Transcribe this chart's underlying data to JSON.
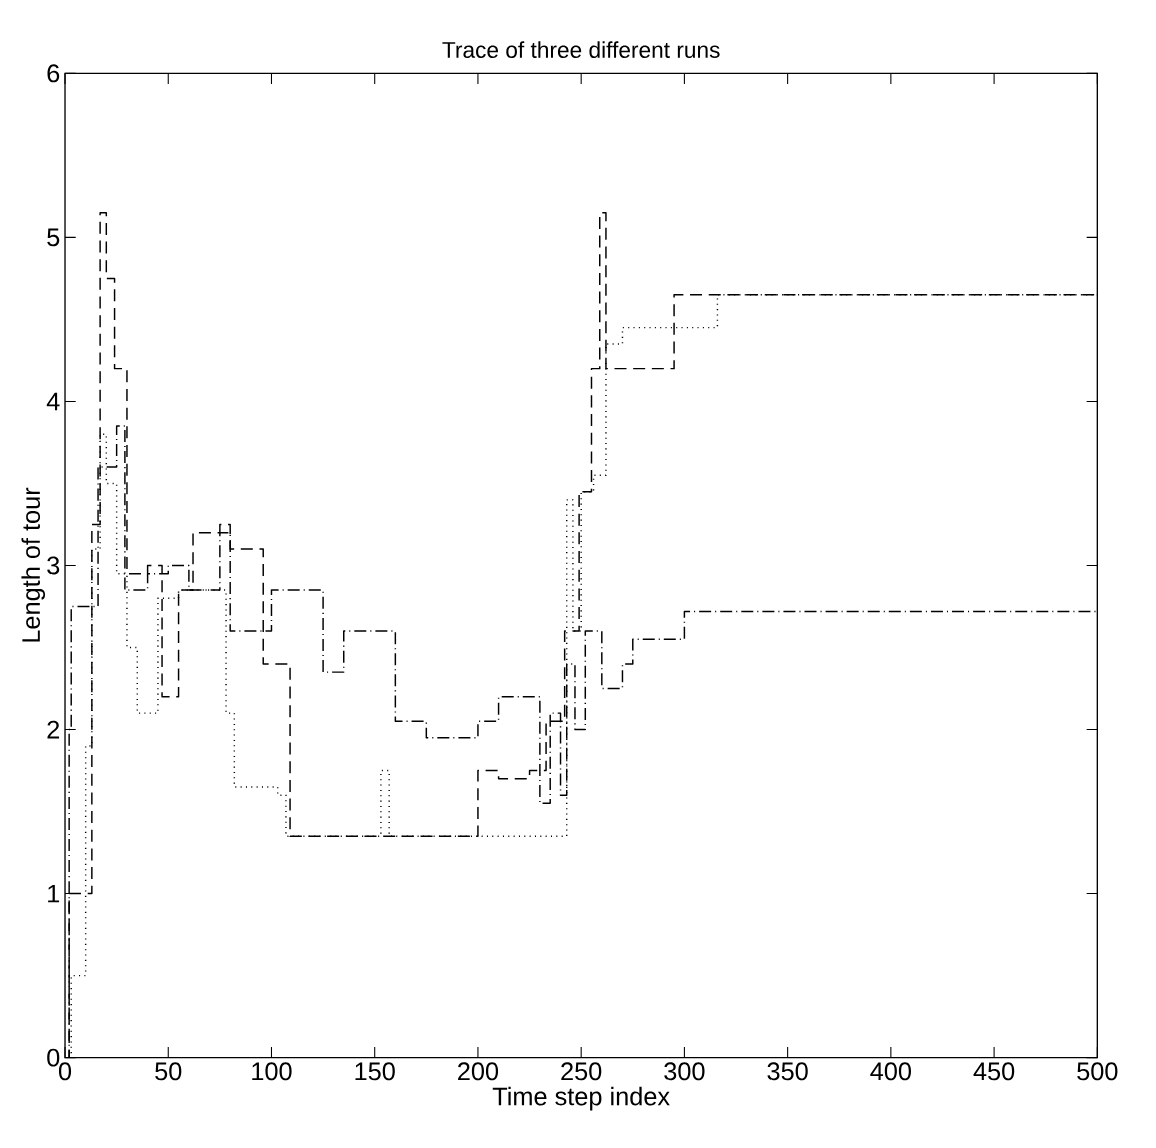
{
  "chart_data": {
    "type": "step",
    "title": "Trace of three different runs",
    "xlabel": "Time step index",
    "ylabel": "Length of tour",
    "xlim": [
      0,
      500
    ],
    "ylim": [
      0,
      6
    ],
    "xticks": [
      0,
      50,
      100,
      150,
      200,
      250,
      300,
      350,
      400,
      450,
      500
    ],
    "yticks": [
      0,
      1,
      2,
      3,
      4,
      5,
      6
    ],
    "grid": false,
    "series": [
      {
        "color": "#000000",
        "line_style": "dashed",
        "x": [
          0,
          2,
          13,
          17,
          20,
          24,
          30,
          40,
          47,
          55,
          62,
          75,
          80,
          96,
          109,
          190,
          200,
          210,
          225,
          233,
          242,
          249,
          255,
          259,
          262,
          295,
          500
        ],
        "values": [
          0,
          1.0,
          3.25,
          5.15,
          4.75,
          4.2,
          2.95,
          3.0,
          2.2,
          2.85,
          3.2,
          3.25,
          3.1,
          2.4,
          1.35,
          1.35,
          1.75,
          1.7,
          1.75,
          2.05,
          2.6,
          3.45,
          4.2,
          5.15,
          4.2,
          4.65,
          4.65
        ]
      },
      {
        "color": "#000000",
        "line_style": "dotted",
        "x": [
          0,
          3,
          10,
          13,
          17,
          20,
          25,
          30,
          35,
          42,
          45,
          55,
          70,
          78,
          82,
          103,
          107,
          150,
          153,
          157,
          240,
          243,
          246,
          250,
          256,
          262,
          270,
          316,
          500
        ],
        "values": [
          0,
          0.5,
          1.9,
          3.1,
          3.8,
          3.5,
          2.95,
          2.5,
          2.1,
          2.1,
          2.8,
          2.85,
          2.85,
          2.1,
          1.65,
          1.6,
          1.35,
          1.35,
          1.75,
          1.35,
          1.35,
          3.4,
          2.6,
          3.45,
          3.55,
          4.35,
          4.45,
          4.65,
          4.65
        ]
      },
      {
        "color": "#000000",
        "line_style": "dashdot",
        "x": [
          0,
          2,
          3,
          13,
          16,
          25,
          29,
          40,
          50,
          60,
          75,
          80,
          100,
          125,
          135,
          160,
          175,
          200,
          210,
          230,
          235,
          240,
          243,
          247,
          252,
          260,
          270,
          275,
          300,
          500
        ],
        "values": [
          0,
          2.0,
          2.75,
          2.75,
          3.6,
          3.85,
          2.85,
          2.95,
          3.0,
          2.85,
          3.2,
          2.6,
          2.85,
          2.35,
          2.6,
          2.05,
          1.95,
          2.05,
          2.2,
          1.55,
          2.1,
          1.6,
          2.4,
          2.0,
          2.6,
          2.25,
          2.4,
          2.55,
          2.72,
          2.72
        ]
      }
    ]
  }
}
